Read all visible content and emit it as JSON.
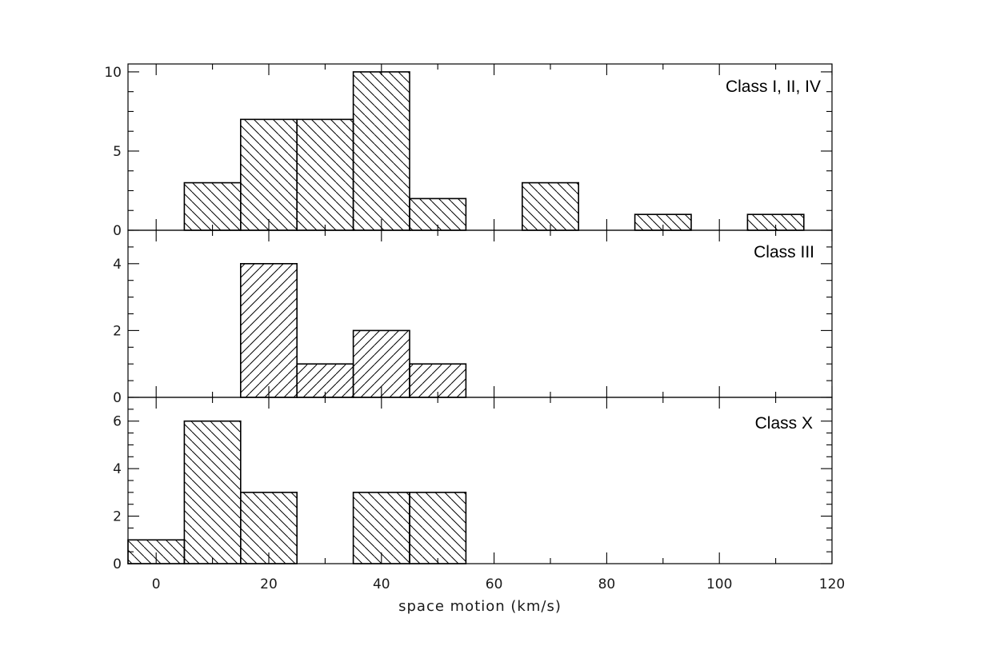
{
  "chart_data": [
    {
      "type": "bar",
      "title": "Class I, II, IV",
      "xlabel": "",
      "ylabel": "",
      "xlim": [
        -5,
        120
      ],
      "ylim": [
        0,
        10.5
      ],
      "y_ticks": [
        0,
        5,
        10
      ],
      "bin_width": 10,
      "hatch": "backslash",
      "bins": [
        {
          "x_start": 5,
          "x_end": 15,
          "value": 3
        },
        {
          "x_start": 15,
          "x_end": 25,
          "value": 7
        },
        {
          "x_start": 25,
          "x_end": 35,
          "value": 7
        },
        {
          "x_start": 35,
          "x_end": 45,
          "value": 10
        },
        {
          "x_start": 45,
          "x_end": 55,
          "value": 2
        },
        {
          "x_start": 65,
          "x_end": 75,
          "value": 3
        },
        {
          "x_start": 85,
          "x_end": 95,
          "value": 1
        },
        {
          "x_start": 105,
          "x_end": 115,
          "value": 1
        }
      ]
    },
    {
      "type": "bar",
      "title": "Class III",
      "xlabel": "",
      "ylabel": "",
      "xlim": [
        -5,
        120
      ],
      "ylim": [
        0,
        5
      ],
      "y_ticks": [
        0,
        2,
        4
      ],
      "bin_width": 10,
      "hatch": "slash",
      "bins": [
        {
          "x_start": 15,
          "x_end": 25,
          "value": 4
        },
        {
          "x_start": 25,
          "x_end": 35,
          "value": 1
        },
        {
          "x_start": 35,
          "x_end": 45,
          "value": 2
        },
        {
          "x_start": 45,
          "x_end": 55,
          "value": 1
        }
      ]
    },
    {
      "type": "bar",
      "title": "Class X",
      "xlabel": "space motion (km/s)",
      "ylabel": "",
      "xlim": [
        -5,
        120
      ],
      "ylim": [
        0,
        7
      ],
      "y_ticks": [
        0,
        2,
        4,
        6
      ],
      "x_ticks": [
        0,
        20,
        40,
        60,
        80,
        100,
        120
      ],
      "bin_width": 10,
      "hatch": "backslash",
      "bins": [
        {
          "x_start": -5,
          "x_end": 5,
          "value": 1
        },
        {
          "x_start": 5,
          "x_end": 15,
          "value": 6
        },
        {
          "x_start": 15,
          "x_end": 25,
          "value": 3
        },
        {
          "x_start": 35,
          "x_end": 45,
          "value": 3
        },
        {
          "x_start": 45,
          "x_end": 55,
          "value": 3
        }
      ]
    }
  ]
}
